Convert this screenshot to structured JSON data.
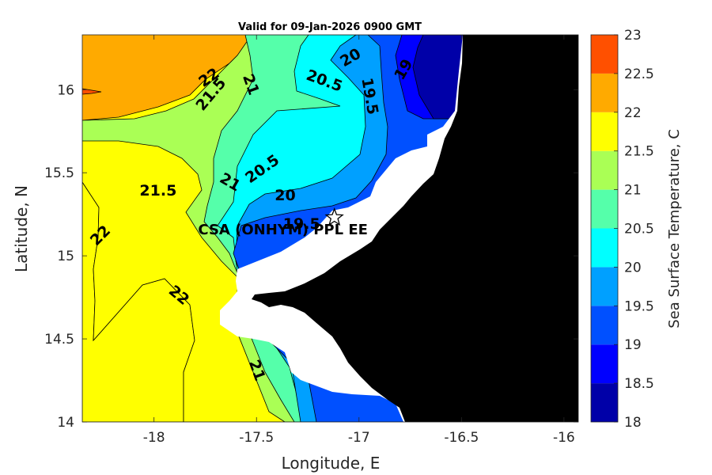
{
  "chart_data": {
    "type": "contour",
    "title": "Valid for 09-Jan-2026 0900 GMT",
    "xlabel": "Longitude, E",
    "ylabel": "Latitude, N",
    "xlim": [
      -18.35,
      -15.93
    ],
    "ylim": [
      14.0,
      16.33
    ],
    "xticks": [
      -18,
      -17.5,
      -17,
      -16.5,
      -16
    ],
    "xtick_labels": [
      "-18",
      "-17.5",
      "-17",
      "-16.5",
      "-16"
    ],
    "yticks": [
      14,
      14.5,
      15,
      15.5,
      16
    ],
    "ytick_labels": [
      "14",
      "14.5",
      "15",
      "15.5",
      "16"
    ],
    "colorbar": {
      "label": "Sea Surface Temperature, C",
      "levels": [
        18,
        18.5,
        19,
        19.5,
        20,
        20.5,
        21,
        21.5,
        22,
        22.5,
        23
      ],
      "tick_labels": [
        "18",
        "18.5",
        "19",
        "19.5",
        "20",
        "20.5",
        "21",
        "21.5",
        "22",
        "22.5",
        "23"
      ],
      "colors": [
        "#0000a8",
        "#0000ff",
        "#0050ff",
        "#00a0ff",
        "#00ffff",
        "#55ffaa",
        "#aaff55",
        "#ffff00",
        "#ffaa00",
        "#ff5000"
      ]
    },
    "contour_labels": [
      {
        "text": "22",
        "lon": -17.73,
        "lat": 16.07
      },
      {
        "text": "21.5",
        "lon": -17.72,
        "lat": 15.97
      },
      {
        "text": "21",
        "lon": -17.53,
        "lat": 16.03
      },
      {
        "text": "20.5",
        "lon": -17.17,
        "lat": 16.05
      },
      {
        "text": "20",
        "lon": -17.04,
        "lat": 16.19
      },
      {
        "text": "19.5",
        "lon": -16.95,
        "lat": 15.96
      },
      {
        "text": "19",
        "lon": -16.78,
        "lat": 16.12
      },
      {
        "text": "20.5",
        "lon": -17.47,
        "lat": 15.52
      },
      {
        "text": "21",
        "lon": -17.63,
        "lat": 15.44
      },
      {
        "text": "21.5",
        "lon": -17.98,
        "lat": 15.39
      },
      {
        "text": "20",
        "lon": -17.36,
        "lat": 15.36
      },
      {
        "text": "19.5",
        "lon": -17.28,
        "lat": 15.19
      },
      {
        "text": "22",
        "lon": -18.26,
        "lat": 15.12
      },
      {
        "text": "22",
        "lon": -17.88,
        "lat": 14.76
      },
      {
        "text": "21",
        "lon": -17.5,
        "lat": 14.31
      }
    ],
    "site": {
      "label": "CSA (ONHYM) PPL EE",
      "lon": -17.12,
      "lat": 15.23,
      "marker": "star"
    }
  }
}
